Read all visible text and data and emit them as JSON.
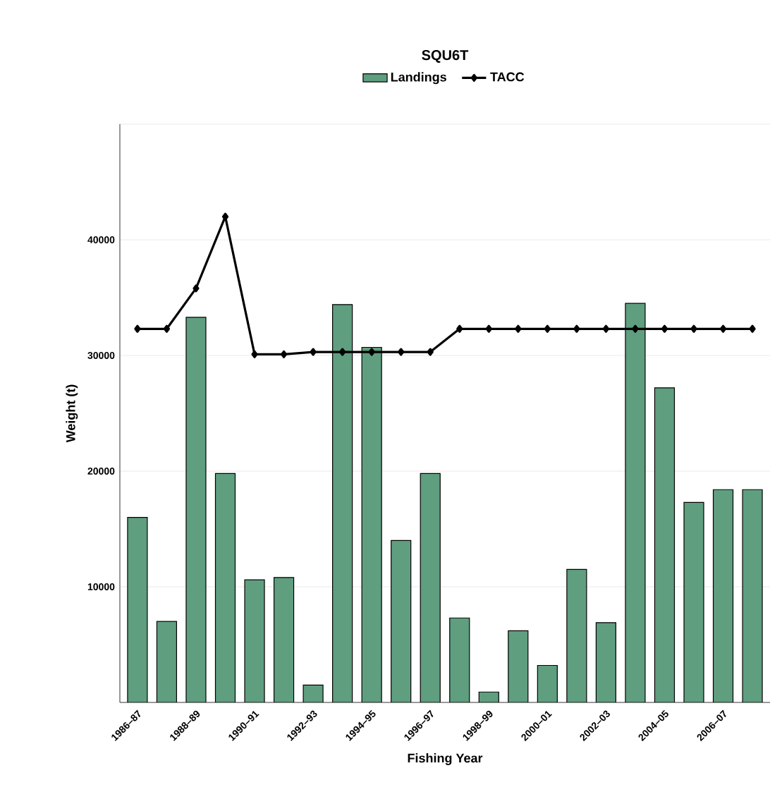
{
  "chart_data": {
    "type": "bar",
    "title": "SQU6T",
    "xlabel": "Fishing Year",
    "ylabel": "Weight (t)",
    "categories": [
      "1986–87",
      null,
      "1988–89",
      null,
      "1990–91",
      null,
      "1992–93",
      null,
      "1994–95",
      null,
      "1996–97",
      null,
      "1998–99",
      null,
      "2000–01",
      null,
      "2002–03",
      null,
      "2004–05",
      null,
      "2006–07",
      null
    ],
    "series": [
      {
        "name": "Landings",
        "color": "#5f9e7f",
        "values": [
          16000,
          7000,
          33300,
          19800,
          10600,
          10800,
          1500,
          34400,
          30700,
          14000,
          19800,
          7300,
          900,
          6200,
          3200,
          11500,
          6900,
          34500,
          27200,
          17300,
          18400,
          18400
        ]
      },
      {
        "name": "TACC",
        "type": "line",
        "color": "#000000",
        "marker": "diamond",
        "values": [
          32300,
          32300,
          35800,
          42000,
          30100,
          30100,
          30300,
          30300,
          30300,
          30300,
          30300,
          32300,
          32300,
          32300,
          32300,
          32300,
          32300,
          32300,
          32300,
          32300,
          32300,
          32300
        ]
      }
    ],
    "ylim": [
      0,
      50000
    ],
    "yticks": [
      10000,
      20000,
      30000,
      40000,
      {
        "value": 50000,
        "label": null
      }
    ],
    "grid": "y",
    "legend": "top"
  }
}
